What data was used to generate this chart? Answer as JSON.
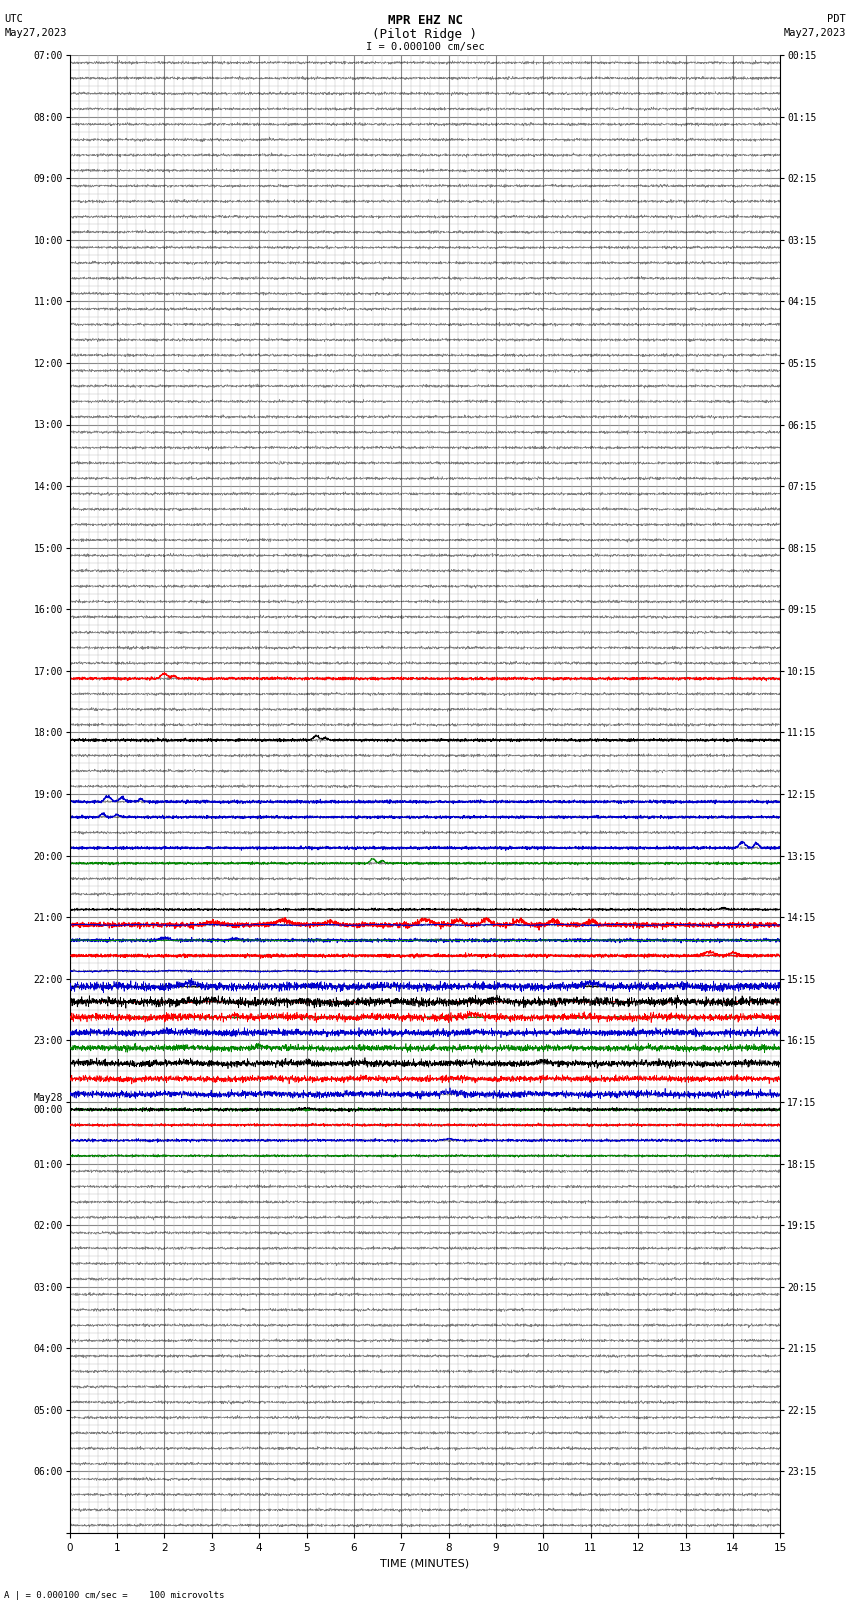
{
  "title_line1": "MPR EHZ NC",
  "title_line2": "(Pilot Ridge )",
  "title_line3": "I = 0.000100 cm/sec",
  "left_label_top": "UTC",
  "left_label_date": "May27,2023",
  "right_label_top": "PDT",
  "right_label_date": "May27,2023",
  "bottom_label": "TIME (MINUTES)",
  "bottom_note": "A | = 0.000100 cm/sec =    100 microvolts",
  "utc_labels_major": [
    "07:00",
    "08:00",
    "09:00",
    "10:00",
    "11:00",
    "12:00",
    "13:00",
    "14:00",
    "15:00",
    "16:00",
    "17:00",
    "18:00",
    "19:00",
    "20:00",
    "21:00",
    "22:00",
    "23:00",
    "May28\n00:00",
    "01:00",
    "02:00",
    "03:00",
    "04:00",
    "05:00",
    "06:00",
    ""
  ],
  "pdt_labels_major": [
    "00:15",
    "01:15",
    "02:15",
    "03:15",
    "04:15",
    "05:15",
    "06:15",
    "07:15",
    "08:15",
    "09:15",
    "10:15",
    "11:15",
    "12:15",
    "13:15",
    "14:15",
    "15:15",
    "16:15",
    "17:15",
    "18:15",
    "19:15",
    "20:15",
    "21:15",
    "22:15",
    "23:15",
    ""
  ],
  "num_hours": 24,
  "subdivisions_per_hour": 4,
  "x_min": 0,
  "x_max": 15,
  "background_color": "#ffffff",
  "major_grid_color": "#888888",
  "minor_grid_color": "#bbbbbb",
  "trace_colors": [
    "#0000cc",
    "#ff0000",
    "#008800",
    "#000000"
  ]
}
